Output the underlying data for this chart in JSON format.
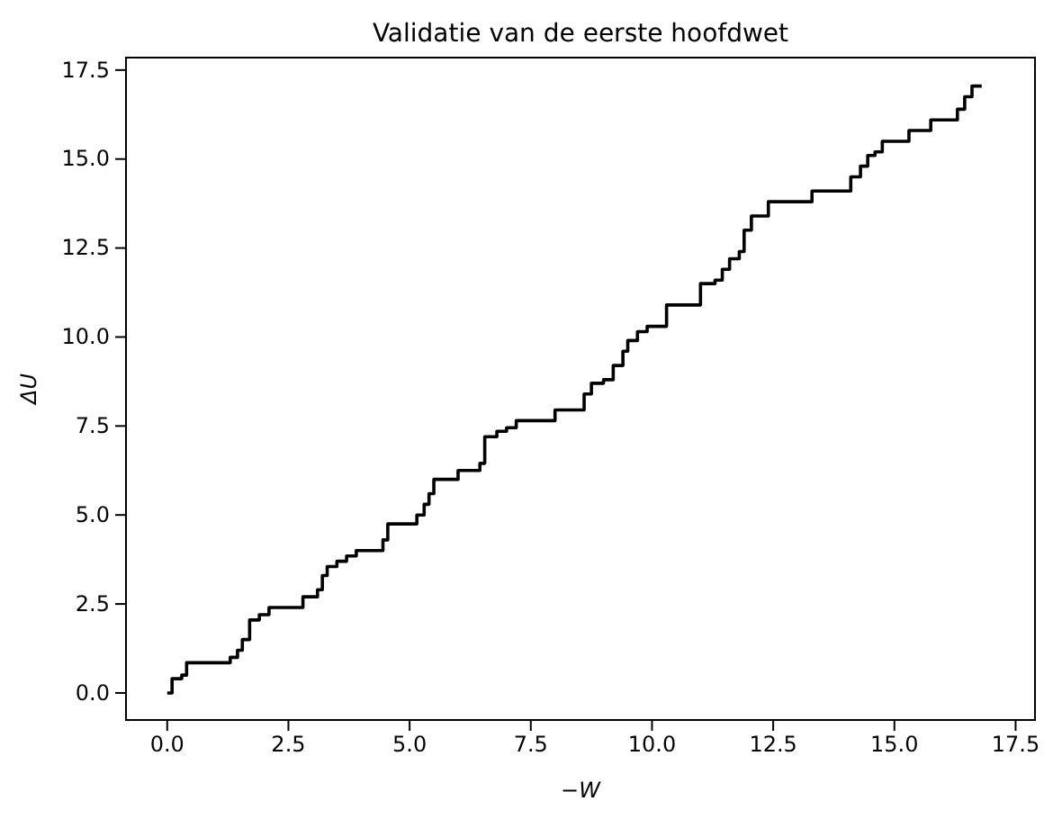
{
  "chart_data": {
    "type": "step",
    "title": "Validatie van de eerste hoofdwet",
    "xlabel": "−W",
    "ylabel": "ΔU",
    "xlim": [
      -0.85,
      17.9
    ],
    "ylim": [
      -0.76,
      17.85
    ],
    "xticks": [
      {
        "value": 0,
        "label": "0.0"
      },
      {
        "value": 2.5,
        "label": "2.5"
      },
      {
        "value": 5,
        "label": "5.0"
      },
      {
        "value": 7.5,
        "label": "7.5"
      },
      {
        "value": 10,
        "label": "10.0"
      },
      {
        "value": 12.5,
        "label": "12.5"
      },
      {
        "value": 15,
        "label": "15.0"
      },
      {
        "value": 17.5,
        "label": "17.5"
      }
    ],
    "yticks": [
      {
        "value": 0,
        "label": "0.0"
      },
      {
        "value": 2.5,
        "label": "2.5"
      },
      {
        "value": 5,
        "label": "5.0"
      },
      {
        "value": 7.5,
        "label": "7.5"
      },
      {
        "value": 10,
        "label": "10.0"
      },
      {
        "value": 12.5,
        "label": "12.5"
      },
      {
        "value": 15,
        "label": "15.0"
      },
      {
        "value": 17.5,
        "label": "17.5"
      }
    ],
    "grid": false,
    "series": [
      {
        "color": "#000000",
        "x": [
          0,
          0.1,
          0.3,
          0.4,
          1.3,
          1.45,
          1.55,
          1.7,
          1.9,
          2.1,
          2.8,
          3.1,
          3.2,
          3.3,
          3.5,
          3.7,
          3.9,
          4.45,
          4.55,
          5.15,
          5.3,
          5.4,
          5.5,
          6.0,
          6.45,
          6.55,
          6.8,
          7.0,
          7.2,
          8.0,
          8.6,
          8.75,
          9.0,
          9.2,
          9.4,
          9.5,
          9.7,
          9.9,
          10.3,
          11.0,
          11.3,
          11.45,
          11.6,
          11.8,
          11.9,
          12.05,
          12.4,
          13.3,
          14.1,
          14.3,
          14.45,
          14.6,
          14.75,
          15.3,
          15.75,
          16.3,
          16.45,
          16.6,
          16.8
        ],
        "values": [
          0,
          0.4,
          0.5,
          0.85,
          1.0,
          1.2,
          1.5,
          2.05,
          2.2,
          2.4,
          2.7,
          2.9,
          3.3,
          3.55,
          3.7,
          3.85,
          4.0,
          4.3,
          4.75,
          5.0,
          5.3,
          5.6,
          6.0,
          6.25,
          6.45,
          7.2,
          7.35,
          7.45,
          7.65,
          7.95,
          8.4,
          8.7,
          8.8,
          9.2,
          9.6,
          9.9,
          10.15,
          10.3,
          10.9,
          11.5,
          11.6,
          11.9,
          12.2,
          12.4,
          13.0,
          13.4,
          13.8,
          14.1,
          14.5,
          14.8,
          15.1,
          15.2,
          15.5,
          15.8,
          16.1,
          16.4,
          16.75,
          17.05,
          17.05
        ]
      }
    ]
  }
}
